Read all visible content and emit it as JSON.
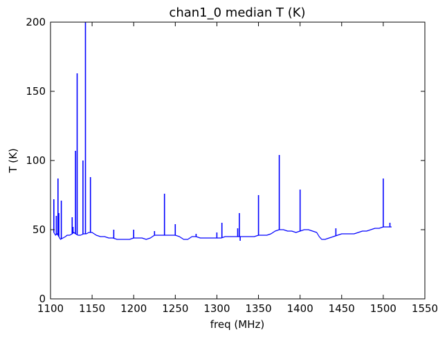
{
  "chart_data": {
    "type": "line",
    "title": "chan1_0 median T (K)",
    "xlabel": "freq (MHz)",
    "ylabel": "T (K)",
    "xlim": [
      1100,
      1550
    ],
    "ylim": [
      0,
      200
    ],
    "xticks": [
      1100,
      1150,
      1200,
      1250,
      1300,
      1350,
      1400,
      1450,
      1500,
      1550
    ],
    "yticks": [
      0,
      50,
      100,
      150,
      200
    ],
    "grid": false,
    "line_color": "#0000ff",
    "series": [
      {
        "x": [
          1104,
          1106,
          1108,
          1110,
          1112,
          1115,
          1118,
          1120,
          1123,
          1126,
          1128,
          1130,
          1133,
          1136,
          1140,
          1143,
          1146,
          1150,
          1155,
          1160,
          1165,
          1170,
          1175,
          1180,
          1185,
          1190,
          1195,
          1200,
          1205,
          1210,
          1215,
          1220,
          1225,
          1230,
          1235,
          1240,
          1245,
          1250,
          1255,
          1260,
          1265,
          1270,
          1275,
          1280,
          1285,
          1290,
          1295,
          1300,
          1305,
          1310,
          1315,
          1320,
          1325,
          1330,
          1335,
          1340,
          1345,
          1350,
          1355,
          1360,
          1365,
          1370,
          1375,
          1380,
          1385,
          1390,
          1395,
          1400,
          1405,
          1410,
          1415,
          1420,
          1423,
          1426,
          1430,
          1435,
          1440,
          1445,
          1450,
          1455,
          1460,
          1465,
          1470,
          1475,
          1480,
          1485,
          1490,
          1495,
          1500,
          1505,
          1510
        ],
        "y": [
          48,
          46,
          47,
          45,
          43,
          44,
          45,
          46,
          46,
          47,
          48,
          47,
          46,
          46,
          47,
          47,
          48,
          48,
          46,
          45,
          45,
          44,
          44,
          43,
          43,
          43,
          43,
          44,
          44,
          44,
          43,
          44,
          46,
          46,
          46,
          46,
          46,
          46,
          45,
          43,
          43,
          45,
          45,
          44,
          44,
          44,
          44,
          44,
          44,
          45,
          45,
          45,
          45,
          45,
          45,
          45,
          45,
          46,
          46,
          46,
          47,
          49,
          50,
          50,
          49,
          49,
          48,
          49,
          50,
          50,
          49,
          48,
          45,
          43,
          43,
          44,
          45,
          46,
          47,
          47,
          47,
          47,
          48,
          49,
          49,
          50,
          51,
          51,
          52,
          52,
          52
        ],
        "spikes": [
          {
            "x": 1104,
            "y": 72
          },
          {
            "x": 1107,
            "y": 60
          },
          {
            "x": 1109,
            "y": 87
          },
          {
            "x": 1110,
            "y": 62
          },
          {
            "x": 1113,
            "y": 71
          },
          {
            "x": 1126,
            "y": 59
          },
          {
            "x": 1127,
            "y": 52
          },
          {
            "x": 1130,
            "y": 107
          },
          {
            "x": 1132,
            "y": 163
          },
          {
            "x": 1139,
            "y": 100
          },
          {
            "x": 1142,
            "y": 200
          },
          {
            "x": 1148,
            "y": 88
          },
          {
            "x": 1176,
            "y": 50
          },
          {
            "x": 1200,
            "y": 50
          },
          {
            "x": 1225,
            "y": 49
          },
          {
            "x": 1237,
            "y": 76
          },
          {
            "x": 1250,
            "y": 54
          },
          {
            "x": 1275,
            "y": 47
          },
          {
            "x": 1300,
            "y": 48
          },
          {
            "x": 1306,
            "y": 55
          },
          {
            "x": 1325,
            "y": 51
          },
          {
            "x": 1327,
            "y": 62
          },
          {
            "x": 1328,
            "y": 42
          },
          {
            "x": 1350,
            "y": 75
          },
          {
            "x": 1375,
            "y": 104
          },
          {
            "x": 1400,
            "y": 79
          },
          {
            "x": 1443,
            "y": 51
          },
          {
            "x": 1500,
            "y": 87
          },
          {
            "x": 1508,
            "y": 55
          }
        ]
      }
    ]
  }
}
